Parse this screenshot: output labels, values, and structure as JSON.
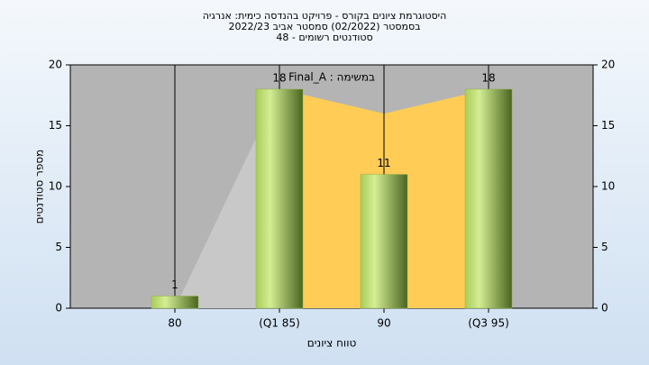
{
  "chart_data": {
    "type": "bar",
    "title": [
      "היסטוגרמת ציונים בקורס - פרויקט בהנדסה כימית: אנרגיה",
      "בסמסטר  (02/2022)  סמסטר אביב 2022/23",
      "סטודנטים רשומים - 48"
    ],
    "annotation": "במשימה : Final_A",
    "y_label": "מספר סטודנטים",
    "x_label": "טווח ציונים",
    "categories": [
      "80",
      "(Q1 85)",
      "90",
      "(Q3 95)"
    ],
    "values": [
      1,
      18,
      11,
      18
    ],
    "color": "#8db444",
    "area": {
      "values": [
        0,
        18,
        16,
        18
      ],
      "colors": [
        "#c8c8c8",
        "#ffcc55",
        "#ffcc55"
      ]
    },
    "ylim": [
      0,
      20
    ],
    "yticks": [
      0,
      5,
      10,
      15,
      20
    ],
    "y2lim": [
      0,
      20
    ],
    "y2ticks": [
      0,
      5,
      10,
      15,
      20
    ],
    "grid": true
  }
}
